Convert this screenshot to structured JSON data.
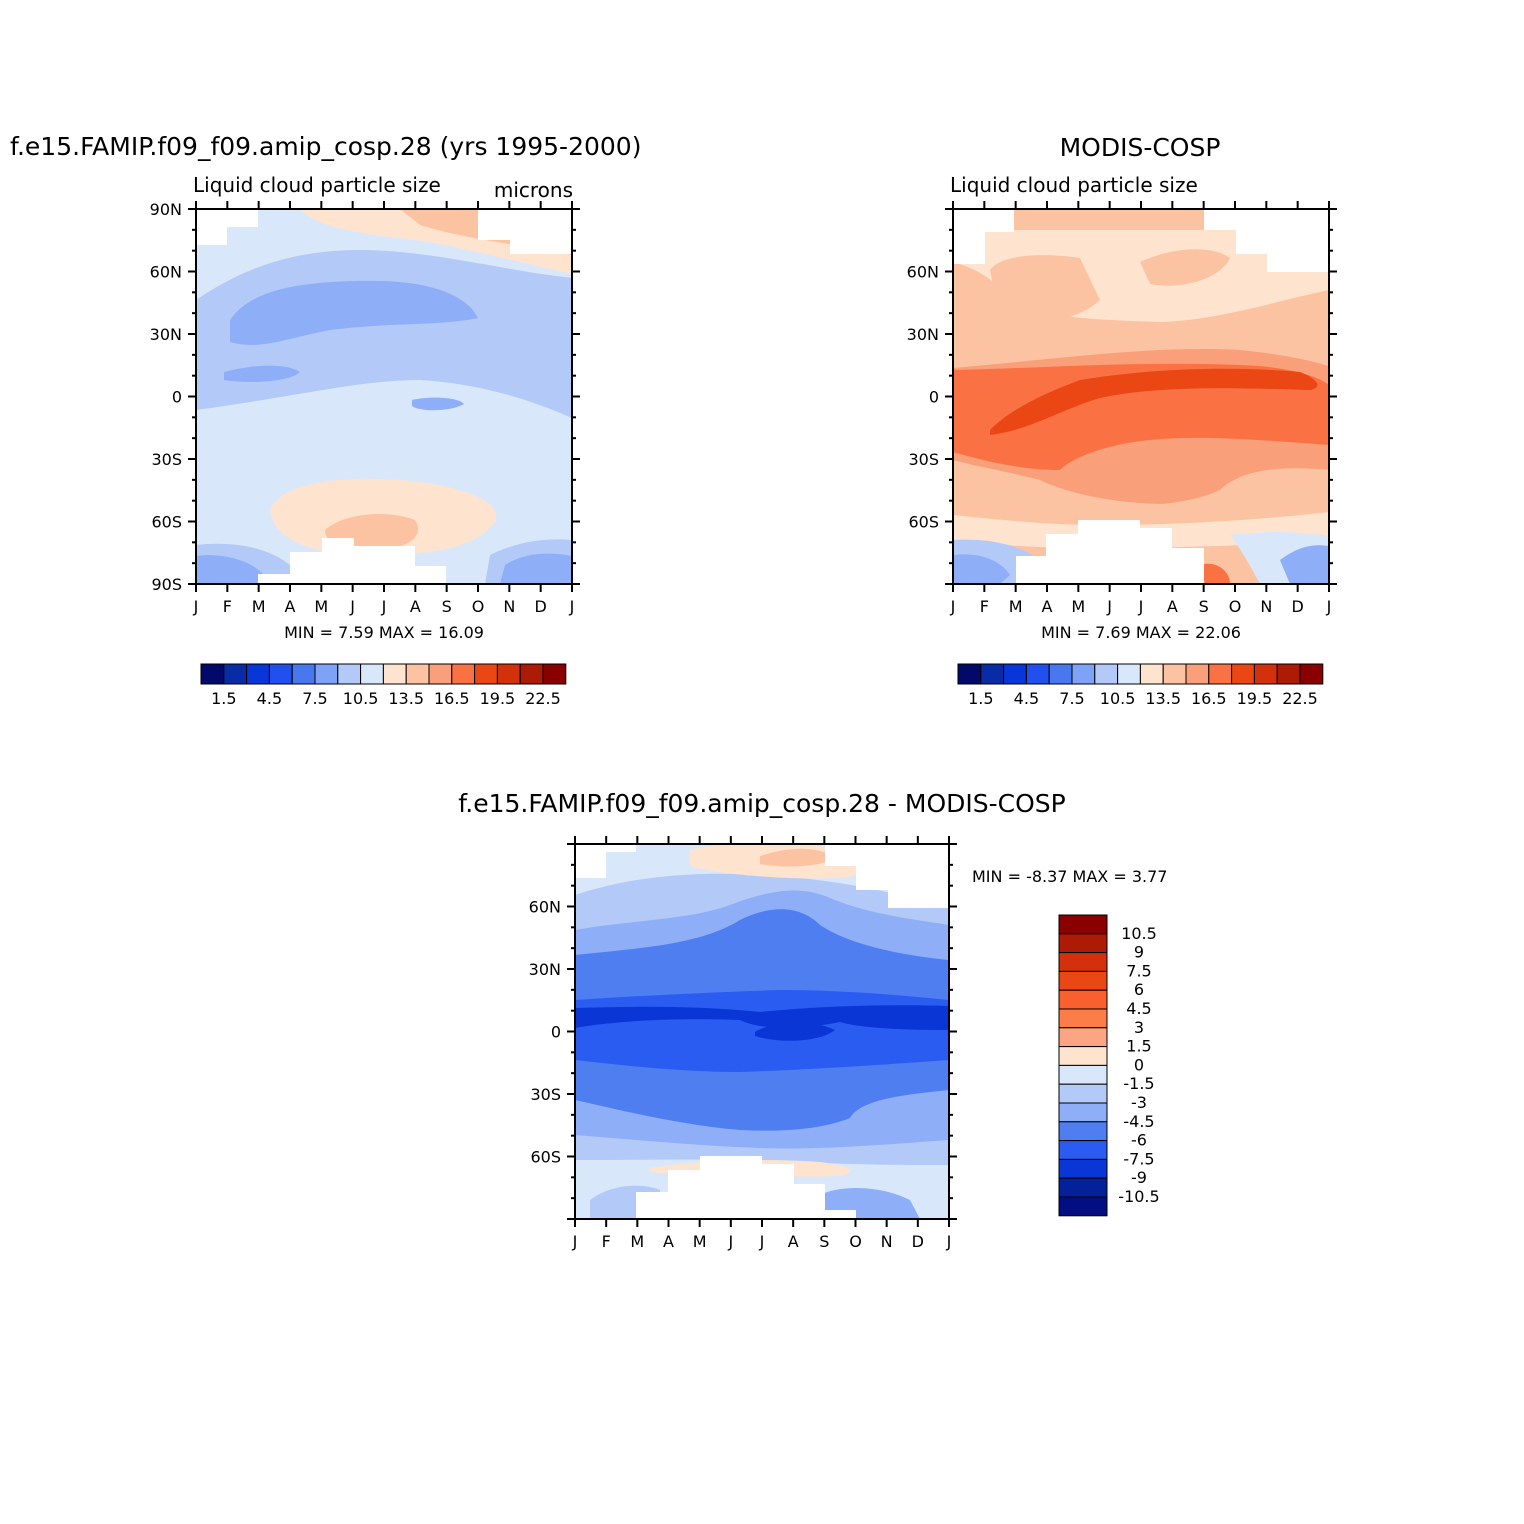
{
  "figure": {
    "month_labels": [
      "J",
      "F",
      "M",
      "A",
      "M",
      "J",
      "J",
      "A",
      "S",
      "O",
      "N",
      "D",
      "J"
    ]
  },
  "chart_data": [
    {
      "type": "heatmap",
      "id": "model",
      "title": "f.e15.FAMIP.f09_f09.amip_cosp.28 (yrs 1995-2000)",
      "subtitle_left": "Liquid cloud particle size",
      "subtitle_right": "microns",
      "xlabel": "",
      "ylabel": "",
      "x_categories": [
        "J",
        "F",
        "M",
        "A",
        "M",
        "J",
        "J",
        "A",
        "S",
        "O",
        "N",
        "D",
        "J"
      ],
      "ylim": [
        -90,
        90
      ],
      "y_ticks": [
        90,
        60,
        30,
        0,
        -30,
        -60,
        -90
      ],
      "y_tick_labels": [
        "90N",
        "60N",
        "30N",
        "0",
        "30S",
        "60S",
        "90S"
      ],
      "stats_text": "MIN =    7.59  MAX =    16.09",
      "colorbar_labels": [
        "1.5",
        "4.5",
        "7.5",
        "10.5",
        "13.5",
        "16.5",
        "19.5",
        "22.5"
      ],
      "colorbar_colors": [
        "#02096b",
        "#0a2ba6",
        "#0836d8",
        "#2250ef",
        "#4878f0",
        "#7ea2f8",
        "#b3caf8",
        "#d9e7fb",
        "#fee4ce",
        "#fcc3a3",
        "#f9a07b",
        "#fa7243",
        "#ea4714",
        "#d2310c",
        "#ad1b06",
        "#8a0000"
      ],
      "min": 7.59,
      "max": 16.09
    },
    {
      "type": "heatmap",
      "id": "obs",
      "title": "MODIS-COSP",
      "subtitle_left": "Liquid cloud particle size",
      "x_categories": [
        "J",
        "F",
        "M",
        "A",
        "M",
        "J",
        "J",
        "A",
        "S",
        "O",
        "N",
        "D",
        "J"
      ],
      "ylim": [
        -90,
        90
      ],
      "y_ticks": [
        60,
        30,
        0,
        -30,
        -60
      ],
      "y_tick_labels": [
        "60N",
        "30N",
        "0",
        "30S",
        "60S"
      ],
      "stats_text": "MIN =    7.69  MAX =    22.06",
      "colorbar_labels": [
        "1.5",
        "4.5",
        "7.5",
        "10.5",
        "13.5",
        "16.5",
        "19.5",
        "22.5"
      ],
      "min": 7.69,
      "max": 22.06
    },
    {
      "type": "heatmap",
      "id": "diff",
      "title": "f.e15.FAMIP.f09_f09.amip_cosp.28 - MODIS-COSP",
      "x_categories": [
        "J",
        "F",
        "M",
        "A",
        "M",
        "J",
        "J",
        "A",
        "S",
        "O",
        "N",
        "D",
        "J"
      ],
      "ylim": [
        -90,
        90
      ],
      "y_ticks": [
        60,
        30,
        0,
        -30,
        -60
      ],
      "y_tick_labels": [
        "60N",
        "30N",
        "0",
        "30S",
        "60S"
      ],
      "stats_text": "MIN =   -8.37  MAX =     3.77",
      "colorbar_labels": [
        "10.5",
        "9",
        "7.5",
        "6",
        "4.5",
        "3",
        "1.5",
        "0",
        "-1.5",
        "-3",
        "-4.5",
        "-6",
        "-7.5",
        "-9",
        "-10.5"
      ],
      "colorbar_colors": [
        "#8a0000",
        "#ad1b06",
        "#d2310c",
        "#ea4714",
        "#fa5f2e",
        "#fa7d4a",
        "#fca584",
        "#fee4ce",
        "#d9e7fb",
        "#b3caf8",
        "#8eaef8",
        "#4e7ef0",
        "#2a5cf2",
        "#0a36d6",
        "#04209a",
        "#020e82"
      ],
      "min": -8.37,
      "max": 3.77
    }
  ]
}
